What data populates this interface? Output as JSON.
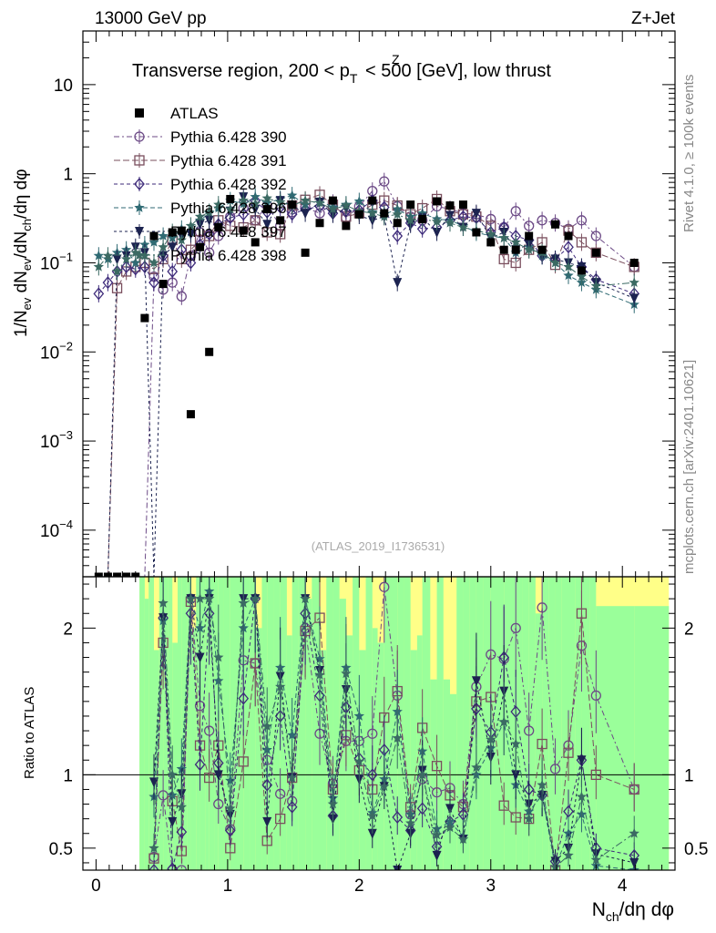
{
  "header": {
    "left": "13000 GeV pp",
    "right": "Z+Jet"
  },
  "side_labels": {
    "rivet": "Rivet 4.1.0, ≥ 100k events",
    "mcplots": "mcplots.cern.ch [arXiv:2401.10621]"
  },
  "colors": {
    "atlas": "#000000",
    "band_green": "#9aff9a",
    "band_yellow": "#ffff88",
    "s390": "#6c4a86",
    "s391": "#7a4f5e",
    "s392": "#3d2a7a",
    "s396": "#2f6a73",
    "s397": "#1c2350",
    "s398": "#3b6a63"
  },
  "chart_data": {
    "type": "scatter",
    "title": "Transverse region, 200 < pT^Z < 500 [GeV], low thrust",
    "title_parts": {
      "before": "Transverse region, 200 < p",
      "sub": "T",
      "sup": "Z",
      "after": " < 500 [GeV], low thrust"
    },
    "watermark": "(ATLAS_2019_I1736531)",
    "xlabel": "N_ch/dη dφ",
    "xlabel_parts": {
      "N": "N",
      "sub": "ch",
      "rest": "/dη dφ"
    },
    "ylabel": "1/N_ev dN_ev/dN_ch/dη dφ",
    "ylabel_parts": [
      "1/N",
      "ev",
      " dN",
      "ev",
      "/dN",
      "ch",
      "/dη dφ"
    ],
    "ratio_ylabel": "Ratio to ATLAS",
    "xlim": [
      -0.1,
      4.4
    ],
    "ylim": [
      3e-05,
      40
    ],
    "yscale": "log",
    "ratio_ylim": [
      0.35,
      2.35
    ],
    "x_ticks": [
      0,
      1,
      2,
      3,
      4
    ],
    "x_tick_labels": [
      "0",
      "1",
      "2",
      "3",
      "4"
    ],
    "y_ticks": [
      0.0001,
      0.001,
      0.01,
      0.1,
      1,
      10
    ],
    "y_tick_labels": [
      {
        "base": "10",
        "exp": "−4"
      },
      {
        "base": "10",
        "exp": "−3"
      },
      {
        "base": "10",
        "exp": "−2"
      },
      {
        "base": "10",
        "exp": "−1"
      },
      {
        "base": "1",
        "exp": ""
      },
      {
        "base": "10",
        "exp": ""
      }
    ],
    "ratio_ticks": [
      0.5,
      1,
      2
    ],
    "ratio_tick_labels": [
      "0.5",
      "1",
      "2"
    ],
    "x": [
      0.02,
      0.09,
      0.16,
      0.23,
      0.3,
      0.37,
      0.44,
      0.51,
      0.58,
      0.65,
      0.72,
      0.79,
      0.86,
      0.93,
      1.02,
      1.12,
      1.21,
      1.3,
      1.4,
      1.49,
      1.59,
      1.7,
      1.8,
      1.9,
      2.0,
      2.1,
      2.19,
      2.29,
      2.39,
      2.48,
      2.59,
      2.69,
      2.79,
      2.89,
      3.0,
      3.1,
      3.19,
      3.29,
      3.39,
      3.49,
      3.59,
      3.69,
      3.8,
      4.09
    ],
    "atlas": [
      3e-05,
      3e-05,
      3e-05,
      3e-05,
      3e-05,
      0.024,
      0.2,
      0.058,
      0.22,
      0.23,
      0.002,
      0.15,
      0.01,
      0.25,
      0.52,
      0.23,
      0.17,
      0.4,
      0.3,
      0.45,
      0.13,
      0.28,
      0.5,
      0.26,
      0.35,
      0.5,
      0.36,
      0.28,
      0.45,
      0.31,
      0.49,
      0.44,
      0.45,
      0.22,
      0.17,
      0.14,
      0.14,
      0.2,
      0.14,
      0.27,
      0.2,
      0.082,
      0.13,
      0.1
    ],
    "series": [
      {
        "name": "Pythia 6.428 390",
        "marker": "circle",
        "color_key": "s390",
        "values": [
          3e-05,
          3e-05,
          3e-05,
          3e-05,
          3e-05,
          3e-05,
          0.07,
          0.05,
          0.06,
          0.042,
          0.12,
          0.22,
          0.13,
          0.2,
          0.33,
          0.41,
          0.3,
          0.44,
          0.26,
          0.37,
          0.42,
          0.36,
          0.47,
          0.32,
          0.43,
          0.64,
          0.82,
          0.43,
          0.33,
          0.3,
          0.43,
          0.4,
          0.36,
          0.35,
          0.31,
          0.25,
          0.38,
          0.26,
          0.3,
          0.28,
          0.24,
          0.3,
          0.2,
          0.09
        ]
      },
      {
        "name": "Pythia 6.428 391",
        "marker": "square",
        "color_key": "s391",
        "values": [
          3e-05,
          3e-05,
          0.052,
          0.08,
          0.09,
          0.1,
          0.085,
          0.11,
          0.18,
          0.11,
          0.14,
          0.18,
          0.2,
          0.3,
          0.26,
          0.25,
          0.3,
          0.22,
          0.21,
          0.44,
          0.51,
          0.58,
          0.45,
          0.33,
          0.36,
          0.45,
          0.5,
          0.44,
          0.35,
          0.41,
          0.52,
          0.38,
          0.35,
          0.33,
          0.26,
          0.11,
          0.1,
          0.14,
          0.17,
          0.095,
          0.23,
          0.17,
          0.13,
          0.09
        ]
      },
      {
        "name": "Pythia 6.428 392",
        "marker": "diamond",
        "color_key": "s392",
        "values": [
          0.045,
          0.06,
          0.08,
          0.09,
          0.085,
          0.09,
          0.06,
          0.12,
          0.08,
          0.14,
          0.1,
          0.16,
          0.21,
          0.27,
          0.32,
          0.35,
          0.5,
          0.37,
          0.42,
          0.35,
          0.4,
          0.43,
          0.36,
          0.38,
          0.39,
          0.5,
          0.42,
          0.2,
          0.28,
          0.24,
          0.25,
          0.3,
          0.33,
          0.32,
          0.22,
          0.25,
          0.2,
          0.18,
          0.12,
          0.11,
          0.15,
          0.09,
          0.065,
          0.045
        ]
      },
      {
        "name": "Pythia 6.428 396",
        "marker": "star",
        "color_key": "s396",
        "values": [
          0.12,
          0.11,
          0.13,
          0.14,
          0.1,
          0.16,
          0.17,
          0.2,
          0.19,
          0.24,
          0.22,
          0.3,
          0.36,
          0.41,
          0.5,
          0.46,
          0.55,
          0.47,
          0.52,
          0.57,
          0.45,
          0.5,
          0.42,
          0.45,
          0.49,
          0.37,
          0.35,
          0.4,
          0.33,
          0.36,
          0.31,
          0.3,
          0.26,
          0.22,
          0.2,
          0.19,
          0.13,
          0.15,
          0.12,
          0.1,
          0.072,
          0.06,
          0.05,
          0.034
        ]
      },
      {
        "name": "Pythia 6.428 397",
        "marker": "triangle-down",
        "color_key": "s397",
        "values": [
          3e-05,
          3e-05,
          0.11,
          0.12,
          0.15,
          0.13,
          3e-05,
          0.12,
          0.15,
          0.2,
          0.21,
          0.27,
          0.3,
          0.25,
          0.38,
          0.55,
          0.4,
          0.27,
          0.5,
          0.44,
          0.36,
          0.48,
          0.35,
          0.41,
          0.34,
          0.3,
          0.33,
          0.06,
          0.27,
          0.32,
          0.22,
          0.34,
          0.25,
          0.36,
          0.19,
          0.22,
          0.14,
          0.16,
          0.12,
          0.11,
          0.1,
          0.09,
          0.06,
          0.04
        ]
      },
      {
        "name": "Pythia 6.428 398",
        "marker": "star",
        "color_key": "s398",
        "values": [
          0.09,
          0.12,
          0.08,
          0.11,
          0.13,
          0.12,
          0.1,
          0.15,
          0.22,
          0.18,
          0.26,
          0.33,
          0.37,
          0.45,
          0.4,
          0.5,
          0.46,
          0.53,
          0.48,
          0.44,
          0.5,
          0.47,
          0.4,
          0.44,
          0.38,
          0.36,
          0.33,
          0.35,
          0.3,
          0.31,
          0.29,
          0.28,
          0.25,
          0.23,
          0.21,
          0.19,
          0.17,
          0.14,
          0.13,
          0.1,
          0.09,
          0.07,
          0.055,
          0.06
        ]
      }
    ],
    "ratios": [
      {
        "name": "Pythia 6.428 390",
        "values": [
          null,
          null,
          null,
          null,
          null,
          null,
          0.44,
          0.86,
          0.27,
          0.18,
          2.2,
          1.47,
          1.3,
          0.8,
          0.63,
          1.78,
          1.76,
          1.1,
          0.87,
          0.82,
          2.0,
          1.28,
          0.94,
          1.23,
          1.23,
          1.28,
          2.28,
          1.54,
          0.73,
          0.97,
          0.88,
          0.91,
          0.8,
          1.6,
          1.82,
          1.79,
          2.0,
          1.3,
          2.14,
          1.04,
          1.2,
          1.88,
          1.54,
          0.9
        ]
      },
      {
        "name": "Pythia 6.428 391",
        "values": [
          null,
          null,
          null,
          null,
          null,
          null,
          0.43,
          1.9,
          0.82,
          0.48,
          2.18,
          1.2,
          0.98,
          1.2,
          0.5,
          1.09,
          1.76,
          0.55,
          0.7,
          0.98,
          1.98,
          2.07,
          0.9,
          1.27,
          1.03,
          0.9,
          1.39,
          1.57,
          0.78,
          1.32,
          1.06,
          0.86,
          0.78,
          1.5,
          1.53,
          0.79,
          0.71,
          0.7,
          1.21,
          0.35,
          1.15,
          2.1,
          1.0,
          0.9
        ]
      },
      {
        "name": "Pythia 6.428 392",
        "values": [
          null,
          null,
          null,
          null,
          null,
          null,
          0.3,
          2.07,
          0.36,
          0.61,
          2.1,
          1.07,
          2.1,
          1.08,
          0.62,
          1.52,
          2.2,
          0.93,
          1.4,
          0.78,
          2.1,
          1.54,
          0.72,
          1.46,
          1.11,
          1.0,
          1.17,
          0.71,
          0.62,
          0.77,
          0.51,
          0.68,
          0.73,
          1.45,
          1.29,
          1.8,
          1.43,
          0.9,
          0.86,
          0.41,
          0.75,
          1.1,
          0.5,
          0.45
        ]
      },
      {
        "name": "Pythia 6.428 396",
        "values": [
          null,
          null,
          null,
          null,
          null,
          null,
          0.85,
          2.05,
          0.86,
          1.04,
          2.2,
          2.0,
          2.25,
          1.64,
          0.96,
          2.0,
          2.2,
          1.17,
          1.73,
          1.27,
          2.2,
          1.79,
          0.84,
          1.73,
          1.4,
          0.74,
          0.97,
          1.43,
          0.73,
          1.16,
          0.63,
          0.68,
          0.58,
          1.0,
          1.18,
          1.36,
          0.93,
          0.75,
          0.86,
          0.37,
          0.6,
          0.73,
          0.38,
          0.34
        ]
      },
      {
        "name": "Pythia 6.428 397",
        "values": [
          null,
          null,
          null,
          null,
          null,
          null,
          0.95,
          2.07,
          0.68,
          0.87,
          2.2,
          1.8,
          2.2,
          1.0,
          0.73,
          2.2,
          2.2,
          0.68,
          1.67,
          0.98,
          2.2,
          1.71,
          0.7,
          1.58,
          0.97,
          0.6,
          0.92,
          0.21,
          0.6,
          1.03,
          0.45,
          0.77,
          0.56,
          1.64,
          1.12,
          1.57,
          1.0,
          0.8,
          0.86,
          0.41,
          0.5,
          1.1,
          0.46,
          0.4
        ]
      },
      {
        "name": "Pythia 6.428 398",
        "values": [
          null,
          null,
          null,
          null,
          null,
          null,
          0.5,
          2.17,
          1.0,
          0.78,
          2.2,
          2.2,
          2.2,
          1.8,
          0.77,
          2.17,
          2.2,
          1.33,
          1.6,
          0.98,
          2.2,
          1.68,
          0.8,
          1.69,
          1.09,
          0.72,
          0.92,
          1.25,
          0.67,
          1.0,
          0.59,
          0.64,
          0.56,
          1.05,
          1.24,
          1.36,
          1.21,
          0.7,
          0.93,
          0.37,
          0.45,
          0.85,
          0.42,
          0.6
        ]
      }
    ],
    "band_edges": [
      0.33,
      0.37,
      0.4,
      0.44,
      0.48,
      0.51,
      0.55,
      0.58,
      0.62,
      0.65,
      0.69,
      0.72,
      0.76,
      0.79,
      0.83,
      0.86,
      0.9,
      0.93,
      0.97,
      1.02,
      1.07,
      1.12,
      1.17,
      1.21,
      1.26,
      1.3,
      1.35,
      1.4,
      1.45,
      1.49,
      1.54,
      1.59,
      1.64,
      1.7,
      1.75,
      1.8,
      1.85,
      1.9,
      1.95,
      2.0,
      2.05,
      2.1,
      2.14,
      2.19,
      2.24,
      2.29,
      2.34,
      2.39,
      2.44,
      2.48,
      2.54,
      2.59,
      2.64,
      2.69,
      2.74,
      2.79,
      2.84,
      2.89,
      2.94,
      3.0,
      3.05,
      3.1,
      3.14,
      3.19,
      3.24,
      3.29,
      3.34,
      3.39,
      3.44,
      3.49,
      3.54,
      3.59,
      3.64,
      3.69,
      3.75,
      3.8,
      4.09,
      4.35
    ],
    "band_green_lo": [
      0.35,
      0.35,
      0.35,
      0.35,
      0.35,
      0.35,
      0.35,
      0.35,
      0.35,
      0.35,
      0.35,
      0.35,
      0.35,
      0.35,
      0.35,
      0.35,
      0.35,
      0.35,
      0.35,
      0.35,
      0.35,
      0.35,
      0.35,
      0.35,
      0.35,
      0.35,
      0.35,
      0.35,
      0.35,
      0.35,
      0.35,
      0.35,
      0.35,
      0.35,
      0.35,
      0.35,
      0.35,
      0.35,
      0.35,
      0.35,
      0.35,
      0.35,
      0.35,
      0.35,
      0.35,
      0.35,
      0.35,
      0.35,
      0.35,
      0.35,
      0.35,
      0.35,
      0.35,
      0.35,
      0.35,
      0.35,
      0.35,
      0.35,
      0.35,
      0.35,
      0.35,
      0.35,
      0.35,
      0.35,
      0.35,
      0.35,
      0.35,
      0.35,
      0.35,
      0.35,
      0.35,
      0.35,
      0.35,
      0.35,
      0.35,
      0.35,
      0.35
    ],
    "band_green_hi": [
      2.35,
      2.2,
      2.35,
      1.85,
      2.35,
      2.35,
      2.35,
      1.9,
      2.35,
      2.35,
      2.35,
      2.0,
      2.35,
      2.35,
      2.35,
      2.35,
      2.35,
      2.35,
      2.35,
      2.35,
      2.35,
      2.35,
      2.35,
      2.0,
      2.35,
      2.35,
      2.35,
      2.35,
      1.95,
      2.35,
      2.35,
      2.2,
      2.35,
      1.85,
      2.35,
      2.35,
      2.2,
      1.95,
      2.35,
      1.85,
      2.35,
      2.0,
      1.9,
      2.35,
      2.35,
      2.35,
      2.35,
      1.85,
      1.95,
      2.35,
      1.65,
      2.35,
      1.65,
      1.55,
      2.35,
      2.35,
      2.35,
      2.35,
      2.35,
      2.35,
      2.35,
      2.35,
      2.35,
      2.35,
      2.35,
      2.35,
      2.1,
      2.35,
      2.35,
      2.35,
      2.35,
      2.35,
      2.35,
      2.35,
      2.35,
      2.15,
      2.15
    ],
    "band_yellow_lo": [
      0.35,
      0.35,
      0.35,
      0.35,
      0.35,
      0.35,
      0.35,
      0.35,
      0.35,
      0.35,
      0.35,
      0.35,
      0.35,
      0.35,
      0.35,
      0.35,
      0.35,
      0.35,
      0.35,
      0.35,
      0.35,
      0.35,
      0.35,
      0.35,
      0.35,
      0.35,
      0.35,
      0.35,
      0.35,
      0.35,
      0.35,
      0.35,
      0.35,
      0.35,
      0.35,
      0.35,
      0.35,
      0.35,
      0.35,
      0.35,
      0.35,
      0.35,
      0.35,
      0.35,
      0.35,
      0.35,
      0.35,
      0.35,
      0.35,
      0.35,
      0.35,
      0.35,
      0.35,
      0.35,
      0.35,
      0.35,
      0.35,
      0.35,
      0.35,
      0.35,
      0.35,
      0.35,
      0.35,
      0.35,
      0.35,
      0.35,
      0.35,
      0.35,
      0.35,
      0.35,
      0.35,
      0.35,
      0.35,
      0.35,
      0.35,
      0.35,
      0.35
    ],
    "band_yellow_hi": [
      2.35,
      2.35,
      2.35,
      2.35,
      2.35,
      2.35,
      2.35,
      2.35,
      2.35,
      2.35,
      2.35,
      2.35,
      2.35,
      2.35,
      2.35,
      2.35,
      2.35,
      2.35,
      2.35,
      2.35,
      2.35,
      2.35,
      2.35,
      2.35,
      2.35,
      2.35,
      2.35,
      2.35,
      2.35,
      2.35,
      2.35,
      2.35,
      2.35,
      2.35,
      2.35,
      2.35,
      2.35,
      2.35,
      2.35,
      2.35,
      2.35,
      2.35,
      2.35,
      2.35,
      2.35,
      2.35,
      2.35,
      2.35,
      2.35,
      2.35,
      2.35,
      2.35,
      2.35,
      2.35,
      2.35,
      2.35,
      2.35,
      2.35,
      2.35,
      2.35,
      2.35,
      2.35,
      2.35,
      2.35,
      2.35,
      2.35,
      2.35,
      2.35,
      2.35,
      2.35,
      2.35,
      2.35,
      2.35,
      2.35,
      2.35,
      2.35,
      2.35
    ],
    "legend": [
      "ATLAS",
      "Pythia 6.428 390",
      "Pythia 6.428 391",
      "Pythia 6.428 392",
      "Pythia 6.428 396",
      "Pythia 6.428 397",
      "Pythia 6.428 398"
    ],
    "legend_position": "top-left"
  }
}
